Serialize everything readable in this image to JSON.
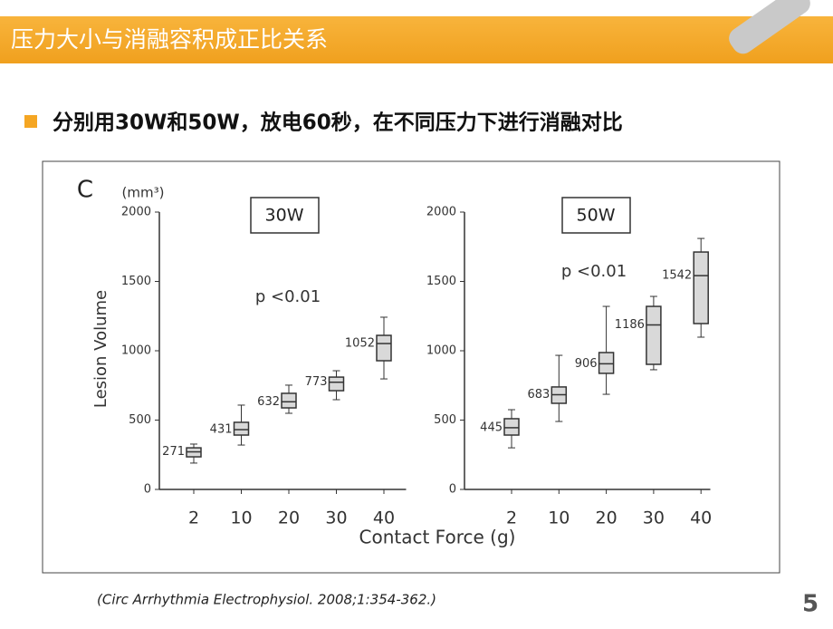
{
  "slide": {
    "title": "压力大小与消融容积成正比关系",
    "bullet": "分别用30W和50W，放电60秒，在不同压力下进行消融对比",
    "citation": "(Circ Arrhythmia Electrophysiol. 2008;1:354-362.)",
    "page_number": "5",
    "shared_x_label": "Contact Force (g)"
  },
  "chart_data": [
    {
      "type": "box",
      "panel_label": "C",
      "unit_label": "(mm³)",
      "title": "30W",
      "annotation": "p <0.01",
      "y_label": "Lesion Volume",
      "categories": [
        "2",
        "10",
        "20",
        "30",
        "40"
      ],
      "values": [
        271,
        431,
        632,
        773,
        1052
      ],
      "q1": [
        235,
        392,
        588,
        712,
        928
      ],
      "q3": [
        300,
        484,
        693,
        810,
        1111
      ],
      "whisker_low": [
        190,
        320,
        549,
        647,
        797
      ],
      "whisker_high": [
        327,
        608,
        752,
        856,
        1242
      ],
      "ylim": [
        0,
        2000
      ],
      "yticks": [
        0,
        500,
        1000,
        1500,
        2000
      ],
      "color": "#d9d9d9"
    },
    {
      "type": "box",
      "title": "50W",
      "annotation": "p <0.01",
      "categories": [
        "2",
        "10",
        "20",
        "30",
        "40"
      ],
      "values": [
        445,
        683,
        906,
        1186,
        1542
      ],
      "q1": [
        392,
        621,
        837,
        902,
        1196
      ],
      "q3": [
        510,
        739,
        987,
        1320,
        1712
      ],
      "whisker_low": [
        300,
        490,
        686,
        863,
        1098
      ],
      "whisker_high": [
        575,
        967,
        1320,
        1392,
        1810
      ],
      "ylim": [
        0,
        2000
      ],
      "yticks": [
        0,
        500,
        1000,
        1500,
        2000
      ],
      "color": "#d9d9d9"
    }
  ]
}
